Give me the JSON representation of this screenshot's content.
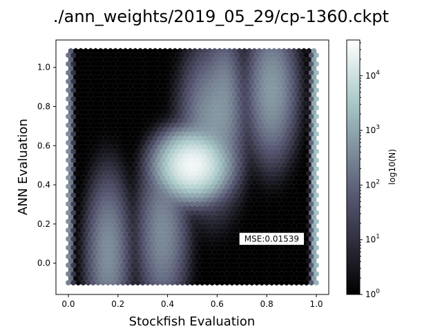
{
  "chart_data": {
    "type": "heatmap",
    "subtype": "hexbin",
    "title": "./ann_weights/2019_05_29/cp-1360.ckpt",
    "xlabel": "Stockfish Evaluation",
    "ylabel": "ANN Evaluation",
    "xlim": [
      -0.05,
      1.05
    ],
    "ylim": [
      -0.16,
      1.14
    ],
    "data_extent": {
      "x": [
        0.0,
        1.0
      ],
      "y": [
        -0.1,
        1.1
      ]
    },
    "xticks": [
      0.0,
      0.2,
      0.4,
      0.6,
      0.8,
      1.0
    ],
    "xtick_labels": [
      "0.0",
      "0.2",
      "0.4",
      "0.6",
      "0.8",
      "1.0"
    ],
    "yticks": [
      0.0,
      0.2,
      0.4,
      0.6,
      0.8,
      1.0
    ],
    "ytick_labels": [
      "0.0",
      "0.2",
      "0.4",
      "0.6",
      "0.8",
      "1.0"
    ],
    "colormap": "bone",
    "colorbar": {
      "label": "log10(N)",
      "scale": "log",
      "range": [
        1,
        45000
      ],
      "ticks": [
        1,
        10,
        100,
        1000,
        10000
      ],
      "tick_labels": [
        {
          "base": "10",
          "exp": "0"
        },
        {
          "base": "10",
          "exp": "1"
        },
        {
          "base": "10",
          "exp": "2"
        },
        {
          "base": "10",
          "exp": "3"
        },
        {
          "base": "10",
          "exp": "4"
        }
      ]
    },
    "annotation": {
      "text": "MSE:0.01539",
      "x": 0.82,
      "y": 0.11
    },
    "density_clusters": [
      {
        "name": "low-stockfish-band",
        "x": 0.16,
        "y": 0.05,
        "sx": 0.035,
        "sy": 0.16,
        "peak": 400
      },
      {
        "name": "mid-lower-band",
        "x": 0.38,
        "y": 0.15,
        "sx": 0.04,
        "sy": 0.16,
        "peak": 350
      },
      {
        "name": "diagonal-core",
        "x": 0.5,
        "y": 0.5,
        "sx": 0.05,
        "sy": 0.06,
        "peak": 30000
      },
      {
        "name": "diagonal-upper",
        "x": 0.58,
        "y": 0.7,
        "sx": 0.05,
        "sy": 0.16,
        "peak": 500
      },
      {
        "name": "upper-middle-band",
        "x": 0.63,
        "y": 0.85,
        "sx": 0.03,
        "sy": 0.14,
        "peak": 250
      },
      {
        "name": "high-stockfish-band",
        "x": 0.82,
        "y": 0.88,
        "sx": 0.04,
        "sy": 0.14,
        "peak": 600
      },
      {
        "name": "right-edge-column",
        "x": 1.0,
        "y": 0.5,
        "sx": 0.008,
        "sy": 0.5,
        "peak": 3000
      },
      {
        "name": "left-edge-column",
        "x": 0.0,
        "y": 0.4,
        "sx": 0.008,
        "sy": 0.45,
        "peak": 500
      }
    ],
    "background_count": 1
  }
}
